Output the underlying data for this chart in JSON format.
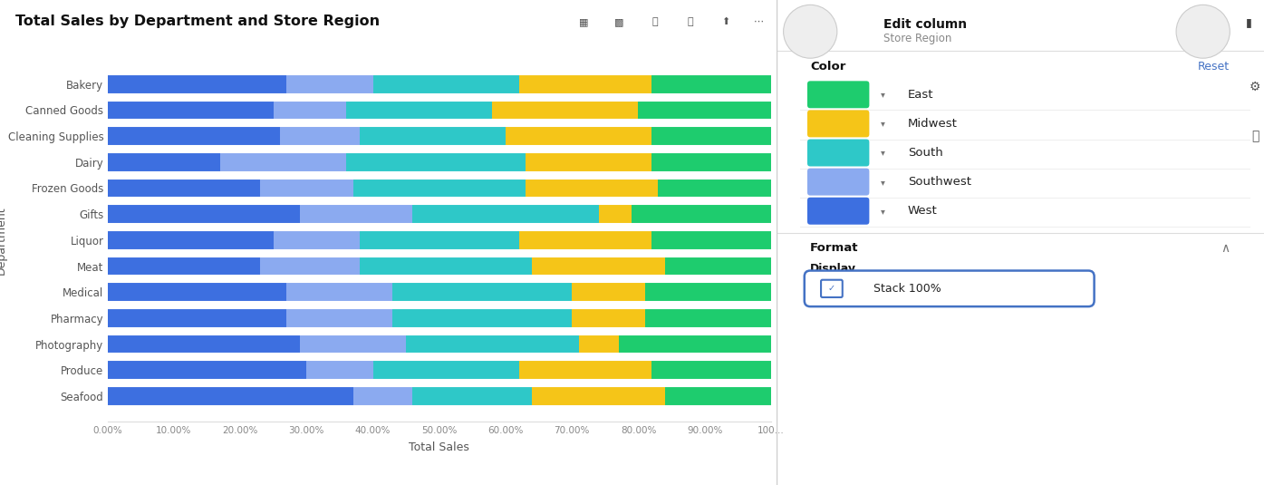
{
  "title": "Total Sales by Department and Store Region",
  "xlabel": "Total Sales",
  "ylabel": "Department",
  "categories": [
    "Bakery",
    "Canned Goods",
    "Cleaning Supplies",
    "Dairy",
    "Frozen Goods",
    "Gifts",
    "Liquor",
    "Meat",
    "Medical",
    "Pharmacy",
    "Photography",
    "Produce",
    "Seafood"
  ],
  "regions": [
    "West",
    "Southwest",
    "South",
    "Midwest",
    "East"
  ],
  "colors": {
    "West": "#3D6FE0",
    "Southwest": "#8BAAF0",
    "South": "#2EC8C8",
    "Midwest": "#F5C518",
    "East": "#1ECC6E"
  },
  "data": {
    "Bakery": {
      "West": 27,
      "Southwest": 13,
      "South": 22,
      "Midwest": 20,
      "East": 18
    },
    "Canned Goods": {
      "West": 25,
      "Southwest": 11,
      "South": 22,
      "Midwest": 22,
      "East": 20
    },
    "Cleaning Supplies": {
      "West": 26,
      "Southwest": 12,
      "South": 22,
      "Midwest": 22,
      "East": 18
    },
    "Dairy": {
      "West": 17,
      "Southwest": 19,
      "South": 27,
      "Midwest": 19,
      "East": 18
    },
    "Frozen Goods": {
      "West": 23,
      "Southwest": 14,
      "South": 26,
      "Midwest": 20,
      "East": 17
    },
    "Gifts": {
      "West": 29,
      "Southwest": 17,
      "South": 28,
      "Midwest": 5,
      "East": 21
    },
    "Liquor": {
      "West": 25,
      "Southwest": 13,
      "South": 24,
      "Midwest": 20,
      "East": 18
    },
    "Meat": {
      "West": 23,
      "Southwest": 15,
      "South": 26,
      "Midwest": 20,
      "East": 16
    },
    "Medical": {
      "West": 27,
      "Southwest": 16,
      "South": 27,
      "Midwest": 11,
      "East": 19
    },
    "Pharmacy": {
      "West": 27,
      "Southwest": 16,
      "South": 27,
      "Midwest": 11,
      "East": 19
    },
    "Photography": {
      "West": 29,
      "Southwest": 16,
      "South": 26,
      "Midwest": 6,
      "East": 23
    },
    "Produce": {
      "West": 30,
      "Southwest": 10,
      "South": 22,
      "Midwest": 20,
      "East": 18
    },
    "Seafood": {
      "West": 37,
      "Southwest": 9,
      "South": 18,
      "Midwest": 20,
      "East": 16
    }
  },
  "bg_color": "#FFFFFF",
  "panel_bg": "#F7F8FA",
  "tick_color": "#888888",
  "label_color": "#555555",
  "title_color": "#111111"
}
